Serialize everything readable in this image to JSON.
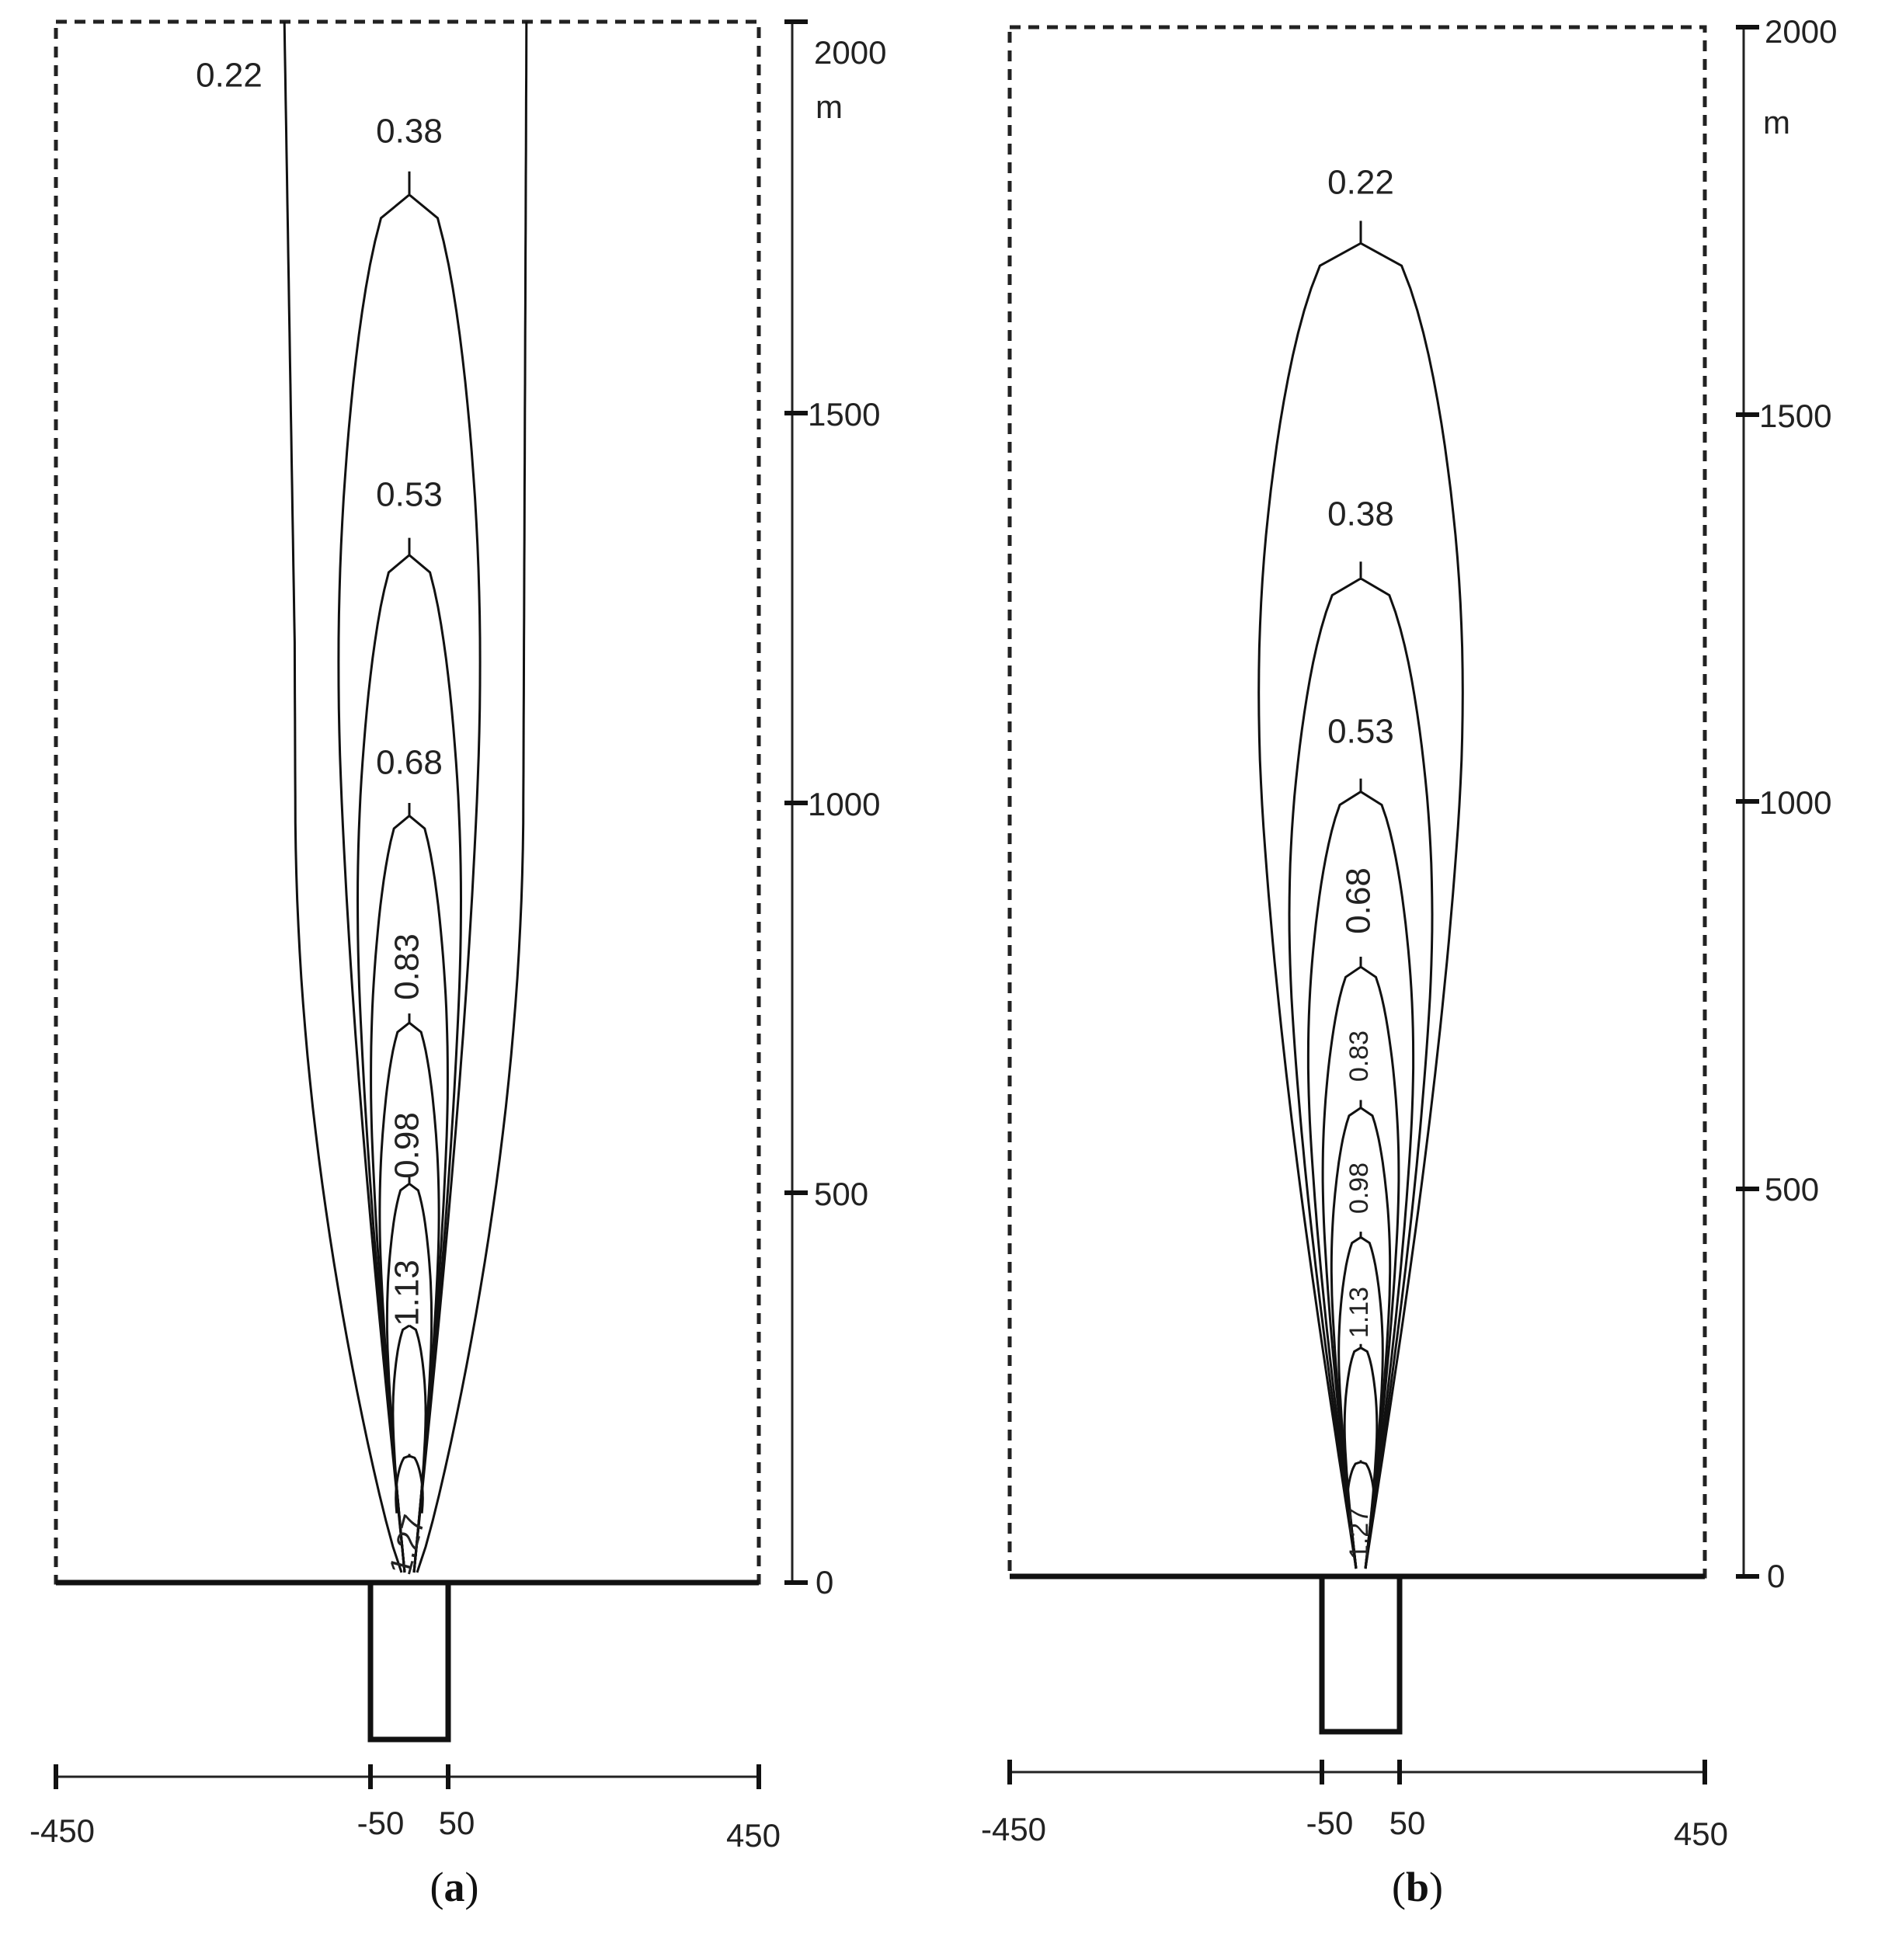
{
  "panels": [
    {
      "id": "a",
      "caption_open": "(",
      "caption_letter": "a",
      "caption_close": ")",
      "contour_levels": [
        {
          "value": "0.22",
          "apex_m": null,
          "half_width_top_m": 146
        },
        {
          "value": "0.38",
          "apex_m": 1810,
          "half_width_top_m": 96
        },
        {
          "value": "0.53",
          "apex_m": 1340,
          "half_width_top_m": 70
        },
        {
          "value": "0.68",
          "apex_m": 1000,
          "half_width_top_m": 52
        },
        {
          "value": "0.83",
          "apex_m": 730,
          "half_width_top_m": 40
        },
        {
          "value": "0.98",
          "apex_m": 520,
          "half_width_top_m": 30
        },
        {
          "value": "1.13",
          "apex_m": 335,
          "half_width_top_m": 22
        },
        {
          "value": "1.27",
          "apex_m": 165,
          "half_width_top_m": 18
        }
      ],
      "y_axis": {
        "ticks": [
          "0",
          "500",
          "1000",
          "1500",
          "2000"
        ],
        "unit": "m"
      },
      "x_axis": {
        "ticks": [
          "-450",
          "-50",
          "50",
          "450"
        ]
      }
    },
    {
      "id": "b",
      "caption_open": "(",
      "caption_letter": "b",
      "caption_close": ")",
      "contour_levels": [
        {
          "value": "0.22",
          "apex_m": 1750,
          "half_width_top_m": 140
        },
        {
          "value": "0.38",
          "apex_m": 1310,
          "half_width_top_m": 98
        },
        {
          "value": "0.53",
          "apex_m": 1030,
          "half_width_top_m": 72
        },
        {
          "value": "0.68",
          "apex_m": 800,
          "half_width_top_m": 52
        },
        {
          "value": "0.83",
          "apex_m": 615,
          "half_width_top_m": 40
        },
        {
          "value": "0.98",
          "apex_m": 445,
          "half_width_top_m": 30
        },
        {
          "value": "1.13",
          "apex_m": 300,
          "half_width_top_m": 22
        },
        {
          "value": "1.27",
          "apex_m": 150,
          "half_width_top_m": 18
        }
      ],
      "y_axis": {
        "ticks": [
          "0",
          "500",
          "1000",
          "1500",
          "2000"
        ],
        "unit": "m"
      },
      "x_axis": {
        "ticks": [
          "-450",
          "-50",
          "50",
          "450"
        ]
      }
    }
  ]
}
